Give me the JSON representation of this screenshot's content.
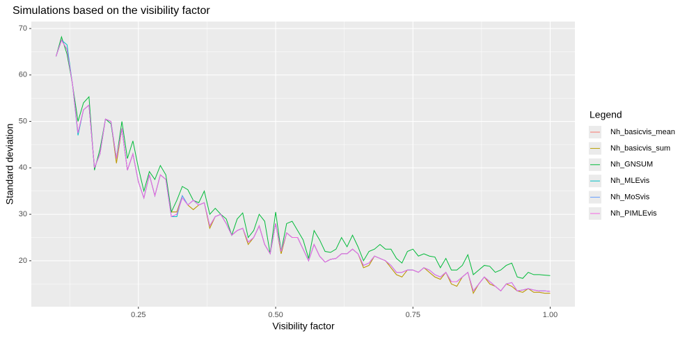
{
  "chart_data": {
    "type": "line",
    "title": "Simulations based on the visibility factor",
    "x_label": "Visibility factor",
    "y_label": "Standard deviation",
    "legend_title": "Legend",
    "legend": "right",
    "grid": true,
    "xlim": [
      0.055,
      1.045
    ],
    "ylim": [
      10.1,
      71.5
    ],
    "xticks": [
      {
        "value": 0.25,
        "label": "0.25"
      },
      {
        "value": 0.5,
        "label": "0.50"
      },
      {
        "value": 0.75,
        "label": "0.75"
      },
      {
        "value": 1,
        "label": "1.00"
      }
    ],
    "yticks": [
      20,
      30,
      40,
      50,
      60,
      70
    ],
    "x": [
      0.1,
      0.11,
      0.12,
      0.13,
      0.14,
      0.15,
      0.16,
      0.17,
      0.18,
      0.19,
      0.2,
      0.21,
      0.22,
      0.23,
      0.24,
      0.25,
      0.26,
      0.27,
      0.28,
      0.29,
      0.3,
      0.31,
      0.32,
      0.33,
      0.34,
      0.35,
      0.36,
      0.37,
      0.38,
      0.39,
      0.4,
      0.41,
      0.42,
      0.43,
      0.44,
      0.45,
      0.46,
      0.47,
      0.48,
      0.49,
      0.5,
      0.51,
      0.52,
      0.53,
      0.54,
      0.55,
      0.56,
      0.57,
      0.58,
      0.59,
      0.6,
      0.61,
      0.62,
      0.63,
      0.64,
      0.65,
      0.66,
      0.67,
      0.68,
      0.69,
      0.7,
      0.71,
      0.72,
      0.73,
      0.74,
      0.75,
      0.76,
      0.77,
      0.78,
      0.79,
      0.8,
      0.81,
      0.82,
      0.83,
      0.84,
      0.85,
      0.86,
      0.87,
      0.88,
      0.89,
      0.9,
      0.91,
      0.92,
      0.93,
      0.94,
      0.95,
      0.96,
      0.97,
      0.98,
      0.99,
      1.0
    ],
    "series": [
      {
        "name": "Nh_basicvis_mean",
        "color": "#F8766D",
        "values": [
          64,
          67.5,
          65.5,
          58,
          47.5,
          52.5,
          53.5,
          40,
          43,
          50.5,
          50,
          41,
          48.5,
          39.5,
          43,
          37,
          33.5,
          38.5,
          34,
          38.5,
          37.5,
          30.5,
          30.5,
          34,
          32,
          31,
          32,
          32.5,
          27,
          29.5,
          30,
          28,
          25.5,
          26.5,
          27,
          23.5,
          25,
          27.5,
          23.5,
          21.5,
          28,
          21.5,
          26,
          25,
          25,
          22.5,
          20,
          23.5,
          21,
          19.7,
          20.3,
          20.5,
          21.5,
          21.5,
          22.5,
          21.5,
          18.5,
          19,
          21,
          20.5,
          20,
          18.5,
          17,
          16.5,
          18,
          18,
          17.5,
          18.5,
          17.5,
          16.5,
          16,
          17.5,
          15,
          14.5,
          16.5,
          17.5,
          13,
          15,
          16.5,
          15,
          14.5,
          13.5,
          15,
          14.5,
          13.5,
          13.2,
          14,
          13.2,
          13.2,
          13,
          13
        ]
      },
      {
        "name": "Nh_basicvis_sum",
        "color": "#B79F00",
        "values": [
          64,
          67.5,
          65.5,
          58,
          47.5,
          52.5,
          53.5,
          40,
          43,
          50.5,
          50,
          41,
          48.5,
          39.5,
          43,
          37,
          33.5,
          38.5,
          34,
          38.5,
          37.5,
          30.5,
          30.5,
          34,
          32,
          31,
          32,
          32.5,
          27,
          29.5,
          30,
          28,
          25.5,
          26.5,
          27,
          23.5,
          25,
          27.5,
          23.5,
          21.5,
          28,
          21.5,
          26,
          25,
          25,
          22.5,
          20,
          23.5,
          21,
          19.7,
          20.3,
          20.5,
          21.5,
          21.5,
          22.5,
          21.5,
          18.5,
          19,
          21,
          20.5,
          20,
          18.5,
          17,
          16.5,
          18,
          18,
          17.5,
          18.5,
          17.5,
          16.5,
          16,
          17.5,
          15,
          14.5,
          16.5,
          17.5,
          13,
          15,
          16.5,
          15,
          14.5,
          13.5,
          15,
          14.5,
          13.5,
          13.2,
          14,
          13.2,
          13.2,
          13,
          13
        ]
      },
      {
        "name": "Nh_GNSUM",
        "color": "#00BA38",
        "values": [
          64,
          68.2,
          64.5,
          58,
          50,
          54,
          55.3,
          39.5,
          44,
          50.5,
          49.5,
          42,
          50,
          42,
          45.8,
          40,
          35,
          39.2,
          37.5,
          40.5,
          38.5,
          30.5,
          33,
          36,
          35.3,
          33,
          32.5,
          35,
          30,
          31.3,
          30,
          29,
          25.5,
          29,
          30.3,
          25,
          26.5,
          30,
          28.5,
          21.5,
          30.5,
          22,
          28,
          28.5,
          26.5,
          24.5,
          20.5,
          26.5,
          24.5,
          22,
          21.8,
          22.5,
          25,
          23,
          25.5,
          23,
          20,
          22,
          22.5,
          23.5,
          22.5,
          22.5,
          20.5,
          19.5,
          22,
          22.5,
          21,
          21.5,
          21,
          20.8,
          18.5,
          20.5,
          18,
          18,
          19,
          21.3,
          17,
          18,
          19,
          18.8,
          17.5,
          18,
          19,
          19.5,
          16.5,
          16.2,
          17.5,
          17,
          17,
          16.9,
          16.8
        ]
      },
      {
        "name": "Nh_MLEvis",
        "color": "#00BFC4",
        "values": [
          64,
          67.5,
          66.5,
          58,
          47,
          52.5,
          53.5,
          40,
          43,
          50.5,
          50,
          42,
          48.5,
          39.5,
          43,
          37,
          33.5,
          38.5,
          34,
          38.5,
          37.5,
          29.5,
          29.5,
          34,
          32,
          33,
          32,
          32.5,
          27.5,
          29.5,
          30,
          28,
          25.5,
          26.5,
          27,
          24,
          25,
          27.5,
          23.5,
          21.5,
          28,
          22,
          26,
          25,
          25,
          22.5,
          20,
          23.5,
          21,
          19.7,
          20.3,
          20.5,
          21.5,
          21.5,
          22.5,
          21.5,
          19,
          19.5,
          21,
          20.5,
          20,
          19,
          17.5,
          17.5,
          18,
          18,
          17.5,
          18.5,
          18,
          17,
          16.5,
          17.5,
          15.5,
          15.5,
          16.5,
          17.5,
          13.5,
          15,
          16.5,
          15.5,
          14.5,
          13.5,
          15,
          15.3,
          13.5,
          13.7,
          14,
          13.7,
          13.5,
          13.5,
          13.4
        ]
      },
      {
        "name": "Nh_MoSvis",
        "color": "#619CFF",
        "values": [
          64,
          67.5,
          65.5,
          58,
          47.5,
          52.5,
          53.5,
          40,
          43,
          50.5,
          50,
          42,
          48.5,
          39.5,
          43,
          37,
          33.5,
          38.5,
          34,
          38.5,
          37.5,
          29.5,
          30,
          34,
          32,
          33,
          32,
          32.5,
          27.5,
          29.5,
          30,
          28,
          25.5,
          26.5,
          27,
          24,
          25,
          27.5,
          23.5,
          21.5,
          28,
          22,
          26,
          25,
          25,
          22.5,
          20,
          23.5,
          21,
          19.7,
          20.3,
          20.5,
          21.5,
          21.5,
          22.5,
          21.5,
          19,
          19.5,
          21,
          20.5,
          20,
          19,
          17.5,
          17.5,
          18,
          18,
          17.5,
          18.5,
          18,
          17,
          16.5,
          17.5,
          15.5,
          15.5,
          16.5,
          17.5,
          13.5,
          15,
          16.5,
          15.5,
          14.5,
          13.5,
          15,
          15.3,
          13.5,
          13.7,
          14,
          13.7,
          13.5,
          13.5,
          13.4
        ]
      },
      {
        "name": "Nh_PIMLEvis",
        "color": "#F564E3",
        "values": [
          64,
          67.5,
          65.5,
          58,
          47.5,
          52.5,
          53.5,
          40,
          43,
          50.5,
          50,
          42,
          48.5,
          39.5,
          43,
          37,
          33.5,
          38.5,
          34,
          38.5,
          37.5,
          29.5,
          30,
          33.5,
          32,
          33,
          32,
          32.5,
          27.5,
          29.5,
          30,
          28,
          25.5,
          26.5,
          27,
          24,
          25,
          27.5,
          23.5,
          21.5,
          28,
          22,
          26,
          25,
          25,
          22.5,
          20,
          23.5,
          21,
          19.7,
          20.3,
          20.5,
          21.5,
          21.5,
          22.5,
          21.5,
          19,
          19.5,
          21,
          20.5,
          20,
          19,
          17.5,
          17.5,
          18,
          18,
          17.5,
          18.5,
          18,
          17,
          16.5,
          17.5,
          15.5,
          15.5,
          16.5,
          17.5,
          13.5,
          15,
          16.5,
          15.5,
          14.5,
          13.5,
          15,
          15.3,
          13.5,
          13.7,
          14,
          13.7,
          13.5,
          13.5,
          13.4
        ]
      }
    ]
  }
}
